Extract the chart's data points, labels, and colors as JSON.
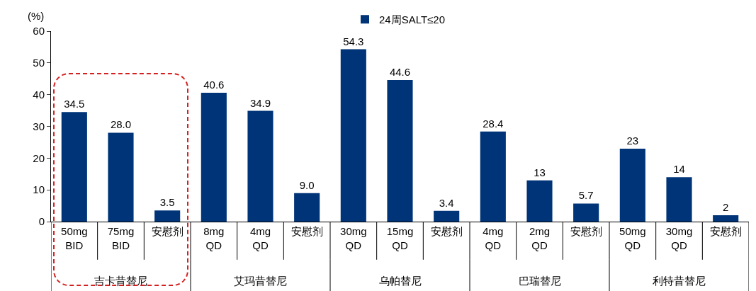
{
  "chart_data": {
    "type": "bar",
    "ylabel": "(%)",
    "categories": [
      "50mg BID",
      "75mg BID",
      "安慰剂",
      "8mg QD",
      "4mg QD",
      "安慰剂",
      "30mg QD",
      "15mg QD",
      "安慰剂",
      "4mg QD",
      "2mg QD",
      "安慰剂",
      "50mg QD",
      "30mg QD",
      "安慰剂"
    ],
    "series": [
      {
        "name": "24周SALT≤20",
        "color": "#003478",
        "values": [
          34.5,
          28.0,
          3.5,
          40.6,
          34.9,
          9.0,
          54.3,
          44.6,
          3.4,
          28.4,
          13,
          5.7,
          23,
          14,
          2
        ],
        "value_labels": [
          "34.5",
          "28.0",
          "3.5",
          "40.6",
          "34.9",
          "9.0",
          "54.3",
          "44.6",
          "3.4",
          "28.4",
          "13",
          "5.7",
          "23",
          "14",
          "2"
        ]
      }
    ],
    "ylim": [
      0,
      60
    ],
    "yticks": [
      0,
      10,
      20,
      30,
      40,
      50,
      60
    ],
    "grid": false,
    "legend": "top",
    "annotations": [
      "吉卡昔替尼",
      "艾玛昔替尼",
      "乌帕替尼",
      "巴瑞替尼",
      "利特昔替尼"
    ]
  }
}
